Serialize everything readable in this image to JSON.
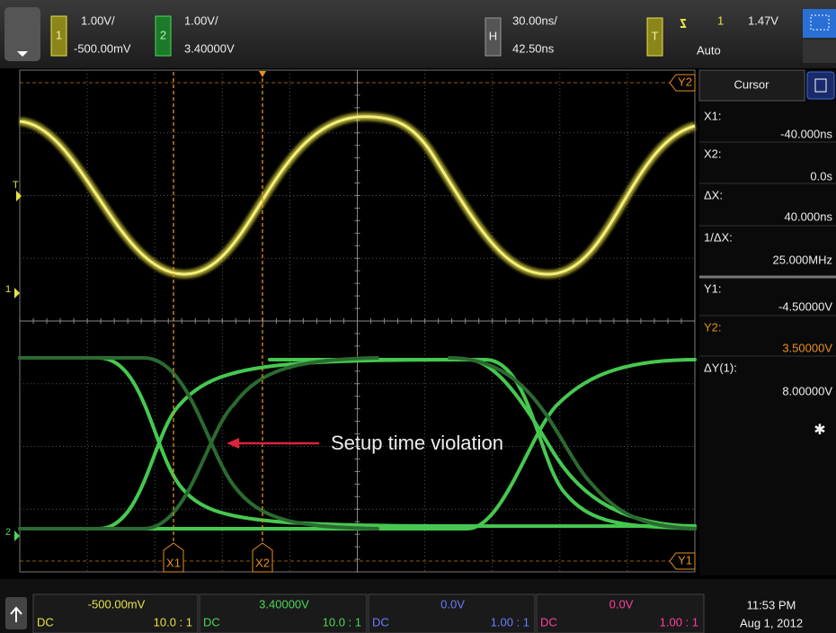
{
  "top_bar": {
    "channel1": {
      "number": "1",
      "scale": "1.00V/",
      "offset": "-500.00mV"
    },
    "channel2": {
      "number": "2",
      "scale": "1.00V/",
      "offset": "3.40000V"
    },
    "horizontal": {
      "label": "H",
      "scale": "30.00ns/",
      "delay": "42.50ns"
    },
    "trigger": {
      "label": "T",
      "source": "1",
      "level": "1.47V",
      "mode": "Auto"
    }
  },
  "screen": {
    "markers": {
      "y2": "Y2",
      "y1": "Y1",
      "x1": "X1",
      "x2": "X2",
      "trigger": "T",
      "ch1_ground": "1",
      "ch2_ground": "2"
    },
    "annotation": "Setup time violation"
  },
  "cursor_panel": {
    "title": "Cursor",
    "rows": [
      {
        "label": "X1:",
        "value": "-40.000ns"
      },
      {
        "label": "X2:",
        "value": "0.0s"
      },
      {
        "label": "ΔX:",
        "value": "40.000ns"
      },
      {
        "label": "1/ΔX:",
        "value": "25.000MHz"
      },
      {
        "label": "Y1:",
        "value": "-4.50000V"
      },
      {
        "label": "Y2:",
        "value": "3.50000V"
      },
      {
        "label": "ΔY(1):",
        "value": "8.00000V"
      }
    ]
  },
  "bottom_bar": {
    "channels": [
      {
        "offset": "-500.00mV",
        "coupling": "DC",
        "probe": "10.0 : 1"
      },
      {
        "offset": "3.40000V",
        "coupling": "DC",
        "probe": "10.0 : 1"
      },
      {
        "offset": "0.0V",
        "coupling": "DC",
        "probe": "1.00 : 1"
      },
      {
        "offset": "0.0V",
        "coupling": "DC",
        "probe": "1.00 : 1"
      }
    ],
    "time": "11:53 PM",
    "date": "Aug 1, 2012"
  }
}
